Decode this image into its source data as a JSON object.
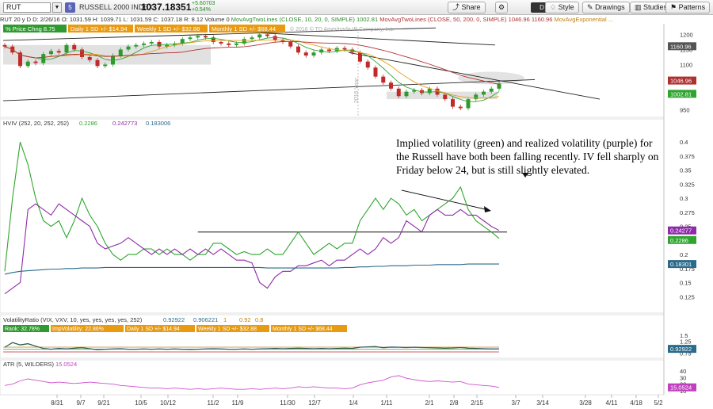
{
  "toolbar": {
    "symbol": "RUT",
    "link_badge": "5",
    "index_name": "RUSSELL 2000 INDEX",
    "price": "1037.18351",
    "change": "+5.60703",
    "change_pct": "+0.54%",
    "share": "Share",
    "period": "D",
    "style": "Style",
    "drawings": "Drawings",
    "studies": "Studies",
    "patterns": "Patterns"
  },
  "study_bar": "RUT 20 y D  D: 2/26/16  O: 1031.59  H: 1039.71  L: 1031.59  C: 1037.18  R: 8.12  Volume  0",
  "price_panel": {
    "ma_fast_label": "MovAvgTwoLines (CLOSE, 10, 20, 0, SIMPLE)",
    "ma_fast_value": "1002.81",
    "ma_slow_label": "MovAvgTwoLines (CLOSE, 50, 200, 0, SIMPLE)",
    "ma_slow_value_1": "1046.96",
    "ma_slow_value_2": "1160.96",
    "ma_exp_label": "MovAvgExponential ...",
    "badges": [
      "% Price Chng 8.75",
      "Daily 1 SD +/- $14.94",
      "Weekly 1 SD +/- $32.88",
      "Monthly 1 SD +/- $68.44"
    ],
    "copyright": "© 2016 © TD Ameritrade IP Company, Inc.",
    "year_marker": "2016 Year",
    "y_ticks": [
      "1200",
      "1150",
      "1100",
      "1050",
      "1000",
      "950"
    ],
    "right_tags": [
      "1160.96",
      "1046.96",
      "1002.81"
    ]
  },
  "hviv_panel": {
    "title": "HVIV (252, 20, 252, 252)",
    "values": [
      "0.2286",
      "0.242773",
      "0.183006"
    ],
    "y_ticks": [
      "0.4",
      "0.375",
      "0.35",
      "0.325",
      "0.3",
      "0.275",
      "0.25",
      "0.225",
      "0.2",
      "0.175",
      "0.15",
      "0.125"
    ],
    "right_tags": [
      "0.24277",
      "0.2286",
      "0.18301"
    ],
    "annotation": "Implied volatility (green) and realized volatility (purple) for the Russell have both been falling recently.  IV fell sharply on Friday below 24, but is still slightly elevated."
  },
  "vr_panel": {
    "title": "VolatilityRatio (VIX, VXV, 10, yes, yes, yes, yes, 252)",
    "values": [
      "0.92922",
      "0.906221",
      "1",
      "0.92",
      "0.8"
    ],
    "badges": [
      "Rank: 32.78%",
      "ImpVolatility: 22.86%",
      "Daily 1 SD +/- $14.94",
      "Weekly 1 SD +/- $32.88",
      "Monthly 1 SD +/- $68.44"
    ],
    "y_ticks": [
      "1.5",
      "1.25",
      "1",
      "0.75"
    ],
    "right_tag": "0.92922"
  },
  "atr_panel": {
    "title": "ATR (5, WILDERS)",
    "value": "15.0524",
    "y_ticks": [
      "40",
      "30",
      "20",
      "10"
    ],
    "right_tag": "15.0524"
  },
  "x_ticks": [
    "8/31",
    "9/7",
    "9/21",
    "10/5",
    "10/12",
    "11/2",
    "11/9",
    "11/30",
    "12/7",
    "1/4",
    "1/11",
    "2/1",
    "2/8",
    "2/15",
    "3/7",
    "3/14",
    "3/28",
    "4/11",
    "4/18",
    "5/2"
  ],
  "colors": {
    "iv": "#2fa52f",
    "rv": "#8e2ba8",
    "hv_long": "#2a6a8a",
    "up_candle": "#2e9a2e",
    "down_candle": "#c22a2a",
    "ma_fast": "#2fa52f",
    "ma_slow": "#b03030",
    "badge_orange": "#e89a10",
    "badge_green": "#2f9a2f"
  },
  "chart_data": {
    "type": "line",
    "x": [
      "8/24",
      "8/26",
      "8/28",
      "9/1",
      "9/3",
      "9/8",
      "9/10",
      "9/14",
      "9/16",
      "9/18",
      "9/22",
      "9/24",
      "9/28",
      "9/30",
      "10/2",
      "10/6",
      "10/8",
      "10/12",
      "10/14",
      "10/16",
      "10/20",
      "10/22",
      "10/26",
      "10/28",
      "10/30",
      "11/3",
      "11/5",
      "11/9",
      "11/11",
      "11/13",
      "11/17",
      "11/19",
      "11/23",
      "11/25",
      "11/30",
      "12/2",
      "12/4",
      "12/8",
      "12/10",
      "12/14",
      "12/16",
      "12/18",
      "12/22",
      "12/24",
      "12/29",
      "12/31",
      "1/5",
      "1/7",
      "1/11",
      "1/13",
      "1/15",
      "1/20",
      "1/22",
      "1/26",
      "1/28",
      "2/1",
      "2/3",
      "2/5",
      "2/9",
      "2/11",
      "2/16",
      "2/18",
      "2/22",
      "2/24",
      "2/26"
    ],
    "series": [
      {
        "name": "Implied volatility",
        "values": [
          0.17,
          0.3,
          0.4,
          0.36,
          0.3,
          0.26,
          0.25,
          0.26,
          0.23,
          0.26,
          0.3,
          0.27,
          0.25,
          0.22,
          0.2,
          0.19,
          0.2,
          0.2,
          0.21,
          0.21,
          0.2,
          0.21,
          0.2,
          0.2,
          0.19,
          0.2,
          0.2,
          0.22,
          0.22,
          0.21,
          0.2,
          0.205,
          0.2,
          0.2,
          0.21,
          0.2,
          0.2,
          0.22,
          0.24,
          0.22,
          0.2,
          0.21,
          0.22,
          0.21,
          0.22,
          0.22,
          0.26,
          0.28,
          0.3,
          0.28,
          0.3,
          0.29,
          0.27,
          0.28,
          0.26,
          0.27,
          0.28,
          0.29,
          0.3,
          0.32,
          0.28,
          0.26,
          0.25,
          0.24,
          0.2286
        ]
      },
      {
        "name": "Realized volatility",
        "values": [
          0.13,
          0.14,
          0.15,
          0.28,
          0.29,
          0.28,
          0.27,
          0.29,
          0.28,
          0.27,
          0.26,
          0.25,
          0.22,
          0.21,
          0.215,
          0.22,
          0.23,
          0.22,
          0.21,
          0.2,
          0.21,
          0.2,
          0.21,
          0.2,
          0.21,
          0.2,
          0.21,
          0.2,
          0.21,
          0.2,
          0.19,
          0.19,
          0.185,
          0.15,
          0.14,
          0.16,
          0.17,
          0.17,
          0.18,
          0.18,
          0.185,
          0.19,
          0.18,
          0.19,
          0.19,
          0.2,
          0.21,
          0.2,
          0.21,
          0.23,
          0.22,
          0.23,
          0.26,
          0.25,
          0.24,
          0.27,
          0.28,
          0.27,
          0.27,
          0.28,
          0.27,
          0.27,
          0.26,
          0.25,
          0.242773
        ]
      },
      {
        "name": "HV long",
        "values": [
          0.165,
          0.168,
          0.17,
          0.171,
          0.172,
          0.173,
          0.174,
          0.174,
          0.175,
          0.175,
          0.176,
          0.176,
          0.176,
          0.177,
          0.177,
          0.177,
          0.177,
          0.177,
          0.177,
          0.177,
          0.177,
          0.177,
          0.177,
          0.177,
          0.177,
          0.177,
          0.177,
          0.177,
          0.177,
          0.177,
          0.177,
          0.177,
          0.177,
          0.177,
          0.176,
          0.176,
          0.176,
          0.176,
          0.176,
          0.176,
          0.176,
          0.176,
          0.176,
          0.176,
          0.177,
          0.177,
          0.178,
          0.178,
          0.179,
          0.179,
          0.18,
          0.18,
          0.18,
          0.181,
          0.181,
          0.181,
          0.182,
          0.182,
          0.182,
          0.182,
          0.183,
          0.183,
          0.183,
          0.183,
          0.183006
        ]
      }
    ],
    "ylim": [
      0.1,
      0.42
    ],
    "reference_level": 0.24,
    "price_close": [
      1160,
      1140,
      1095,
      1110,
      1105,
      1135,
      1145,
      1140,
      1165,
      1150,
      1125,
      1115,
      1095,
      1100,
      1130,
      1150,
      1160,
      1165,
      1170,
      1175,
      1160,
      1165,
      1170,
      1185,
      1190,
      1195,
      1190,
      1175,
      1170,
      1165,
      1170,
      1185,
      1190,
      1200,
      1195,
      1180,
      1175,
      1160,
      1140,
      1130,
      1140,
      1150,
      1145,
      1155,
      1150,
      1140,
      1110,
      1090,
      1060,
      1040,
      1020,
      995,
      1010,
      1015,
      1005,
      1020,
      1000,
      985,
      960,
      955,
      985,
      1000,
      1010,
      1020,
      1037
    ],
    "price_ylim": [
      930,
      1225
    ],
    "atr_values": [
      18,
      20,
      25,
      28,
      26,
      24,
      22,
      23,
      22,
      21,
      22,
      23,
      22,
      21,
      20,
      18,
      17,
      16,
      15,
      14,
      14,
      13,
      14,
      13,
      12,
      13,
      12,
      13,
      14,
      13,
      12,
      12,
      13,
      12,
      13,
      14,
      13,
      14,
      16,
      15,
      16,
      15,
      14,
      14,
      13,
      14,
      19,
      22,
      24,
      26,
      31,
      33,
      29,
      27,
      25,
      24,
      25,
      24,
      23,
      24,
      20,
      19,
      18,
      17,
      15.05
    ],
    "atr_ylim": [
      5,
      45
    ],
    "vr_values": [
      1.0,
      1.2,
      1.1,
      1.15,
      1.05,
      0.95,
      0.92,
      0.95,
      0.93,
      0.96,
      0.98,
      0.94,
      0.9,
      0.92,
      0.93,
      0.94,
      0.92,
      0.92,
      0.93,
      0.92,
      0.93,
      0.92,
      0.93,
      0.92,
      0.91,
      0.92,
      0.93,
      0.94,
      0.93,
      0.92,
      0.92,
      0.93,
      0.92,
      0.93,
      0.94,
      0.95,
      0.94,
      0.95,
      0.96,
      0.95,
      0.94,
      0.95,
      0.94,
      0.95,
      0.96,
      0.95,
      1.0,
      1.02,
      1.03,
      0.98,
      1.01,
      1.0,
      0.99,
      1.0,
      0.99,
      0.98,
      0.97,
      0.96,
      0.97,
      0.99,
      0.96,
      0.95,
      0.94,
      0.93,
      0.929
    ],
    "vr_ylim": [
      0.6,
      1.6
    ]
  }
}
